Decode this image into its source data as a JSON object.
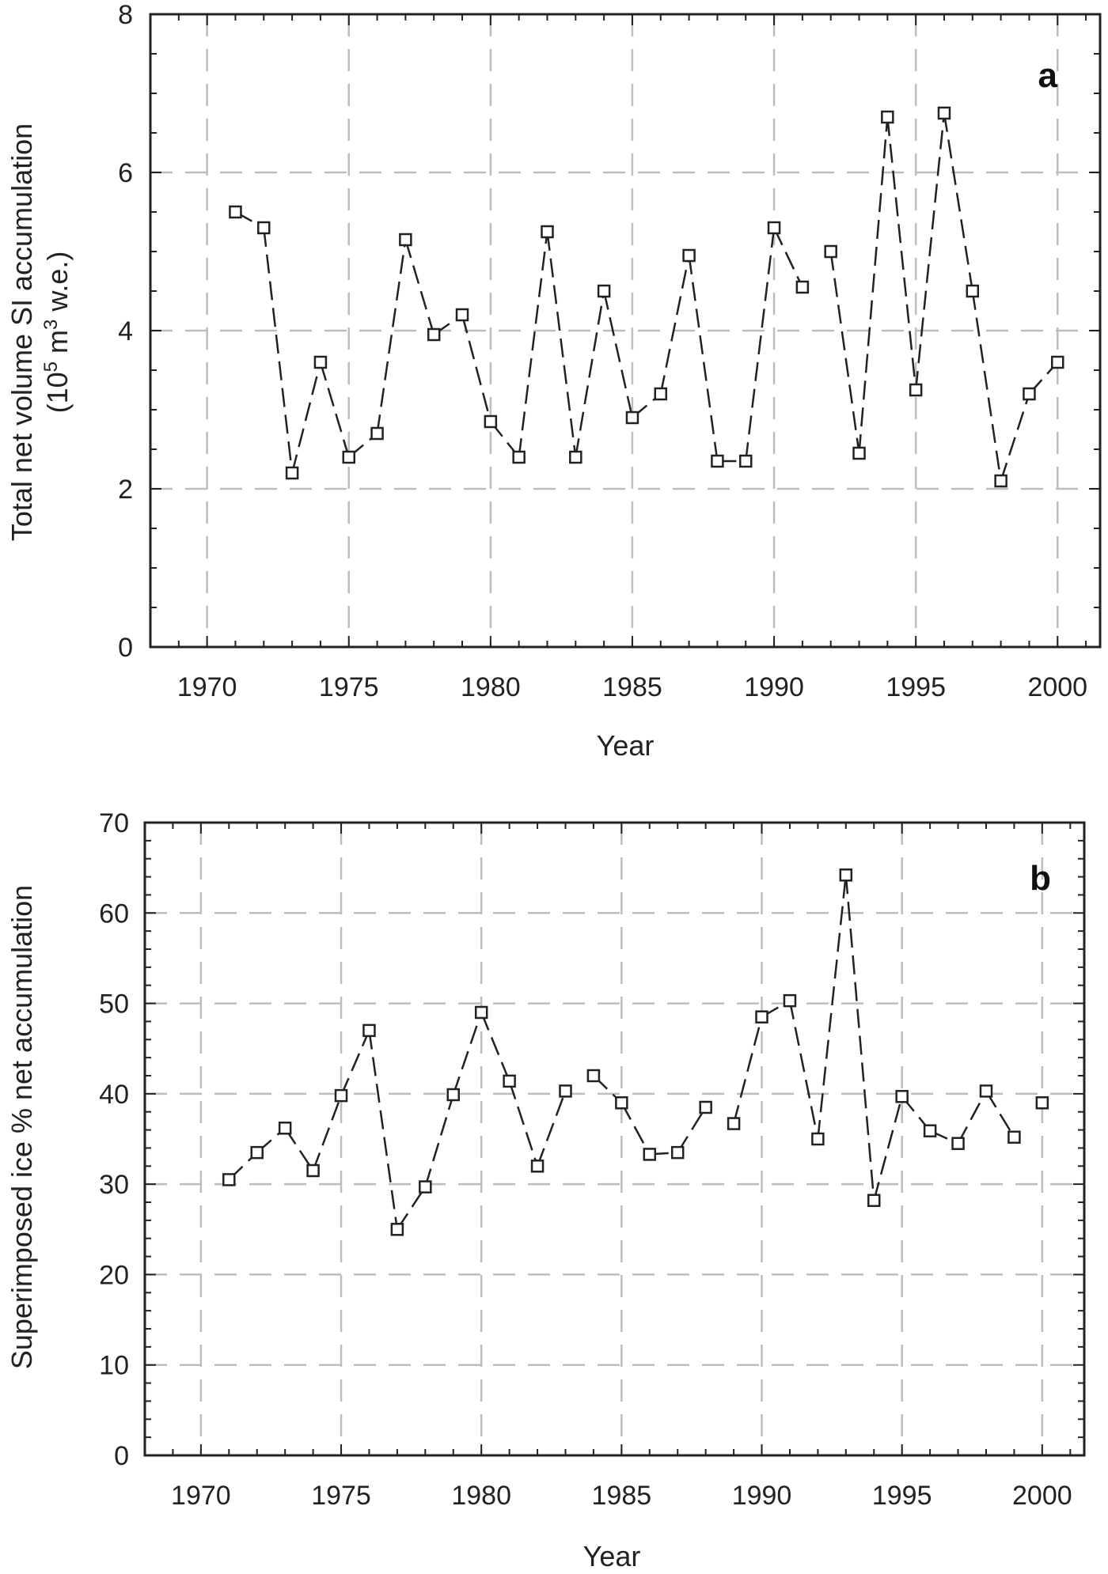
{
  "chart_data": [
    {
      "type": "line",
      "panel_label": "a",
      "xlabel": "Year",
      "ylabel_line1": "Total net volume SI accumulation",
      "ylabel_line2_prefix": "(10",
      "ylabel_line2_sup1": "5",
      "ylabel_line2_mid": " m",
      "ylabel_line2_sup2": "3",
      "ylabel_line2_suffix": " w.e.)",
      "xlim": [
        1968,
        2001.5
      ],
      "ylim": [
        0,
        8
      ],
      "xticks": [
        1970,
        1975,
        1980,
        1985,
        1990,
        1995,
        2000
      ],
      "yticks": [
        0,
        2,
        4,
        6,
        8
      ],
      "grid": true,
      "x": [
        1971,
        1972,
        1973,
        1974,
        1975,
        1976,
        1977,
        1978,
        1979,
        1980,
        1981,
        1982,
        1983,
        1984,
        1985,
        1986,
        1987,
        1988,
        1989,
        1990,
        1991,
        1992,
        1993,
        1994,
        1995,
        1996,
        1997,
        1998,
        1999,
        2000
      ],
      "y": [
        5.5,
        5.3,
        2.2,
        3.6,
        2.4,
        2.7,
        5.15,
        3.95,
        4.2,
        2.85,
        2.4,
        5.25,
        2.4,
        4.5,
        2.9,
        3.2,
        4.95,
        2.35,
        2.35,
        5.3,
        4.55,
        5.0,
        2.45,
        6.7,
        3.25,
        6.75,
        4.5,
        2.1,
        3.2,
        3.6
      ],
      "gaps_after": [
        1991
      ]
    },
    {
      "type": "line",
      "panel_label": "b",
      "xlabel": "Year",
      "ylabel": "Superimposed ice % net accumulation",
      "xlim": [
        1968,
        2001.5
      ],
      "ylim": [
        0,
        70
      ],
      "xticks": [
        1970,
        1975,
        1980,
        1985,
        1990,
        1995,
        2000
      ],
      "yticks": [
        0,
        10,
        20,
        30,
        40,
        50,
        60,
        70
      ],
      "grid": true,
      "x": [
        1971,
        1972,
        1973,
        1974,
        1975,
        1976,
        1977,
        1978,
        1979,
        1980,
        1981,
        1982,
        1983,
        1984,
        1985,
        1986,
        1987,
        1988,
        1989,
        1990,
        1991,
        1992,
        1993,
        1994,
        1995,
        1996,
        1997,
        1998,
        1999,
        2000
      ],
      "y": [
        30.5,
        33.5,
        36.2,
        31.5,
        39.8,
        47.0,
        25.0,
        29.7,
        39.9,
        49.0,
        41.4,
        32.0,
        40.3,
        42.0,
        39.0,
        33.3,
        33.5,
        38.5,
        36.7,
        48.5,
        50.3,
        35.0,
        64.2,
        28.2,
        39.7,
        35.9,
        34.5,
        40.3,
        35.2,
        39.0
      ],
      "gaps_after": [
        1983,
        1988,
        1999
      ]
    }
  ]
}
